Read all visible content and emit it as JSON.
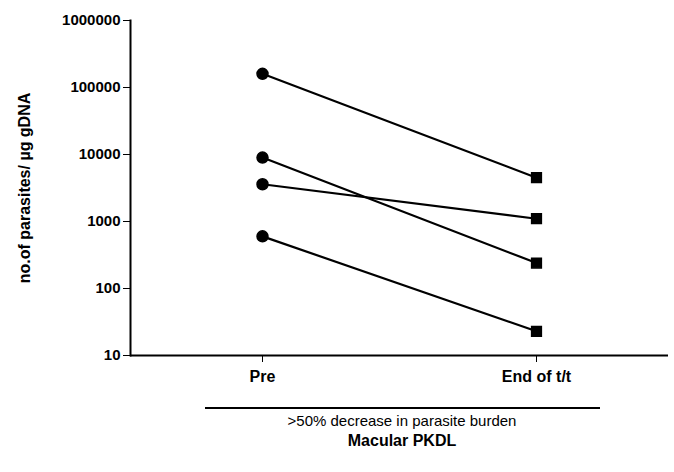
{
  "chart_data": {
    "type": "line",
    "categories": [
      "Pre",
      "End of t/t"
    ],
    "series": [
      {
        "color": "#000000",
        "values": [
          160000,
          4500
        ]
      },
      {
        "color": "#000000",
        "values": [
          9000,
          240
        ]
      },
      {
        "color": "#000000",
        "values": [
          3600,
          1100
        ]
      },
      {
        "color": "#000000",
        "values": [
          600,
          23
        ]
      }
    ],
    "marker": [
      "circle",
      "square"
    ],
    "ylabel": "no.of parasites/ µg gDNA",
    "annotations": [
      ">50% decrease in parasite burden"
    ],
    "xlabel": "Macular PKDL",
    "log": "y",
    "ylim": [
      10,
      1000000
    ],
    "yticks": [
      10,
      100,
      1000,
      10000,
      100000,
      1000000
    ],
    "grid": false
  }
}
